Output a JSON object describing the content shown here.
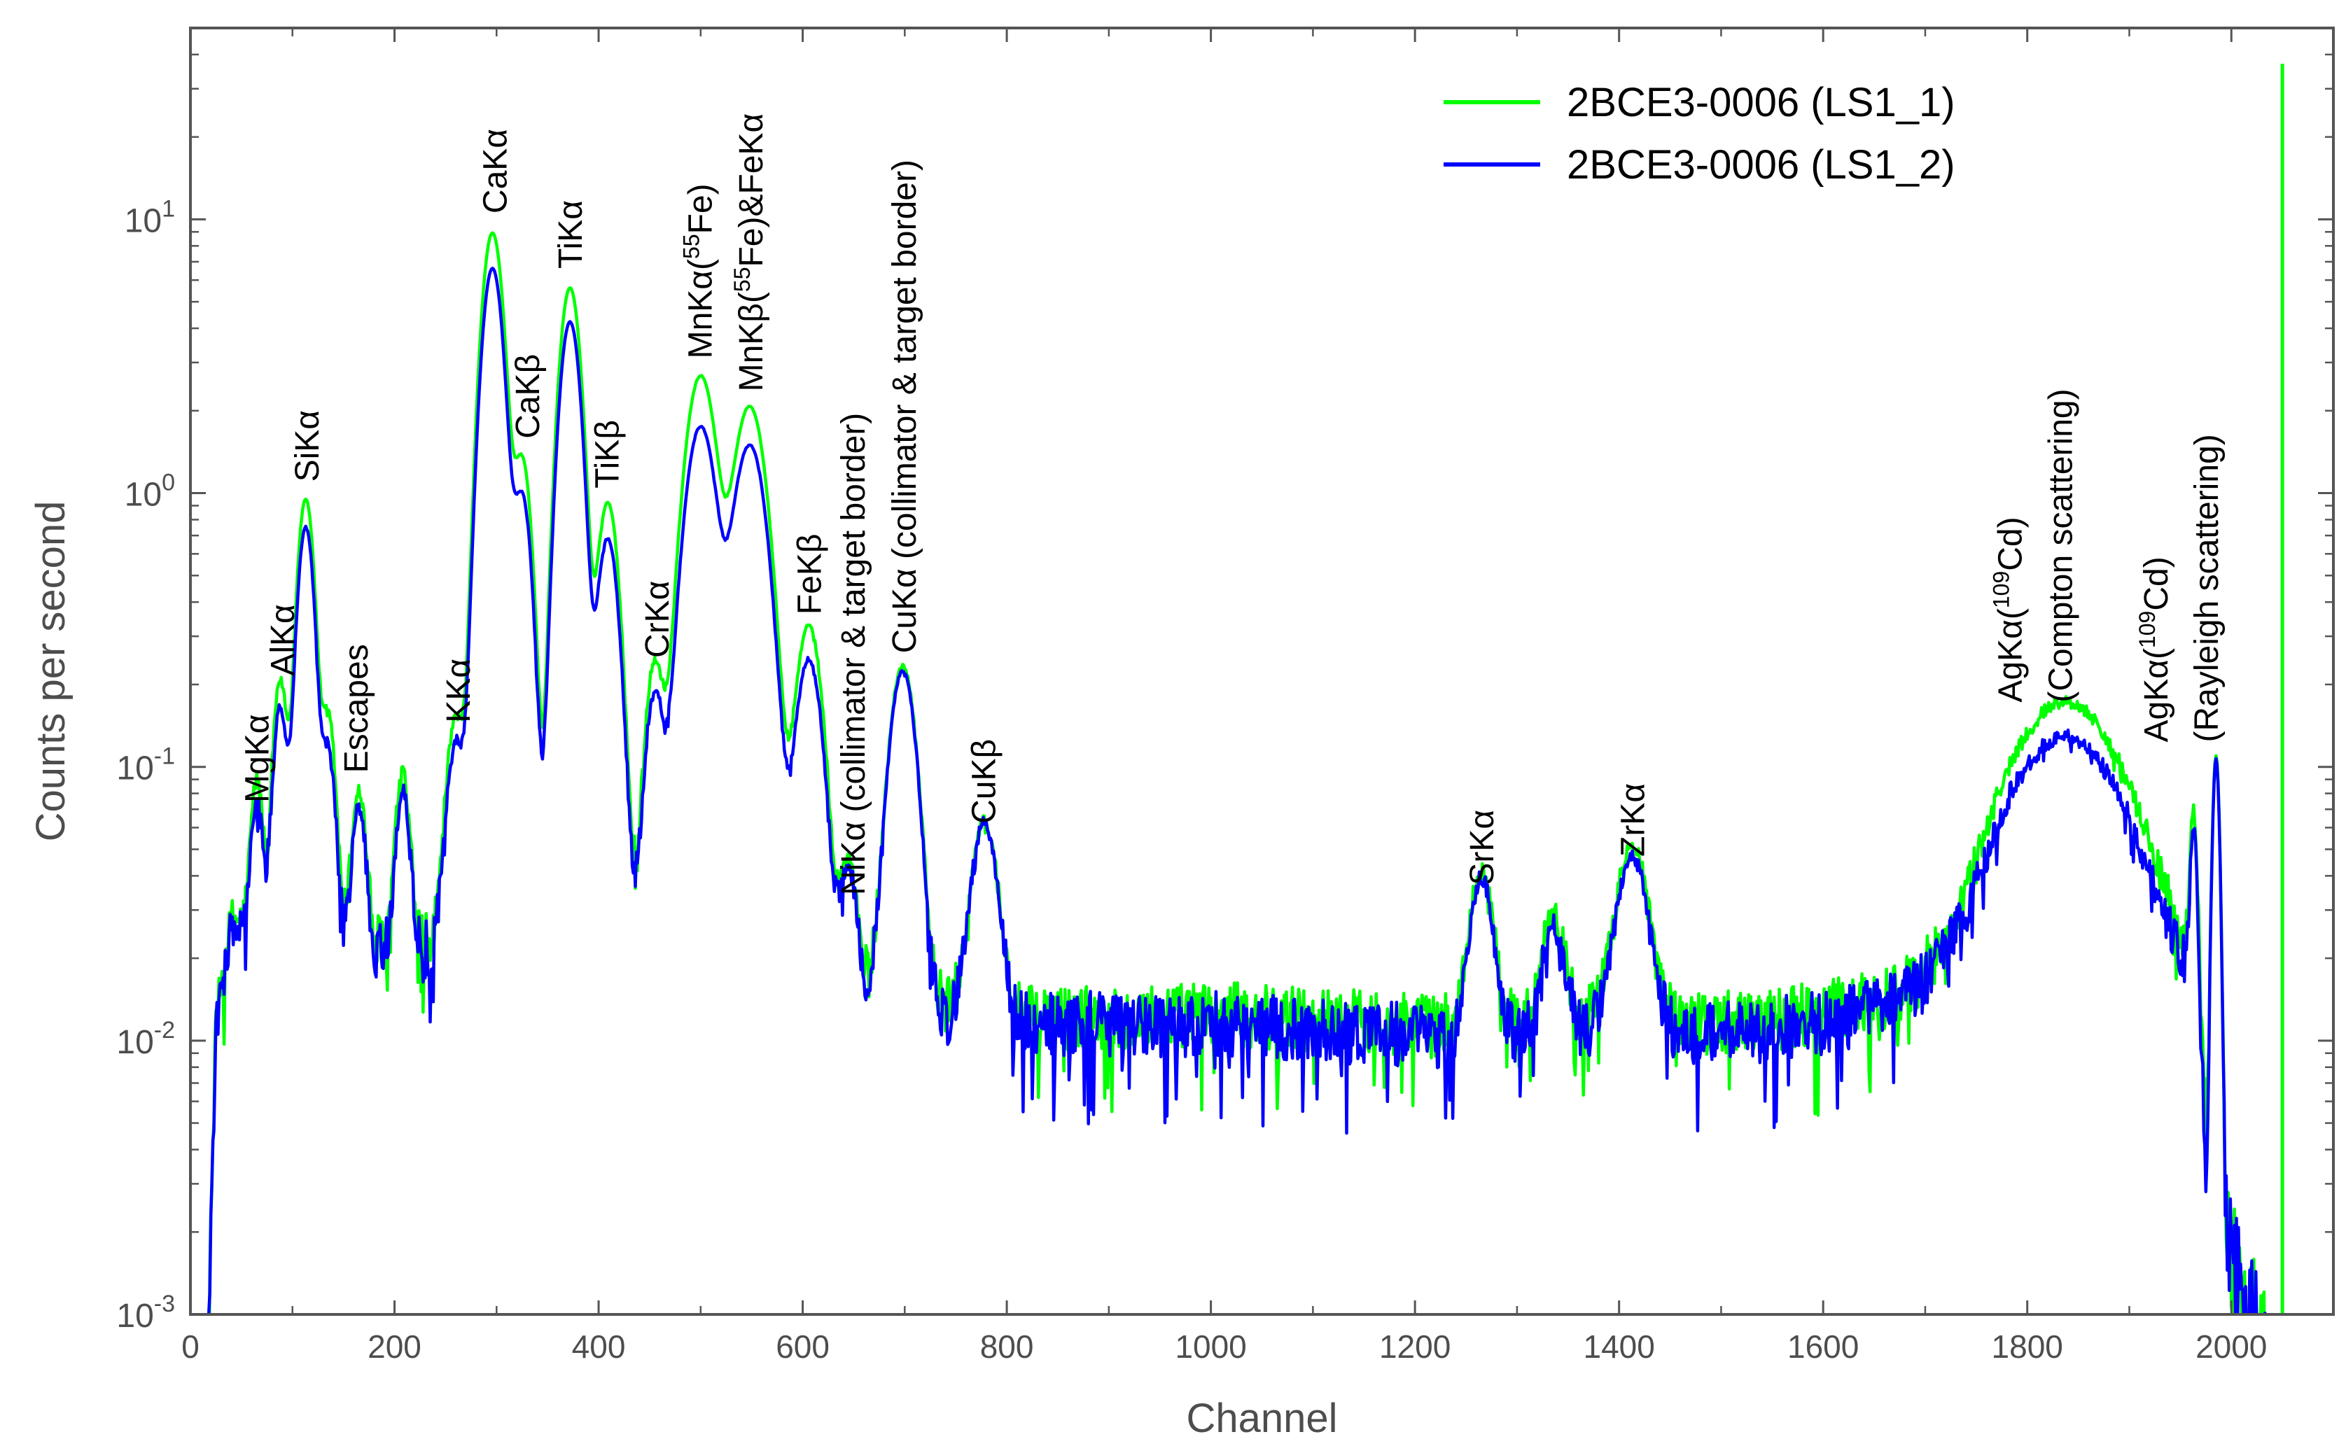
{
  "chart_data": {
    "type": "line",
    "xlabel": "Channel",
    "ylabel": "Counts per second",
    "xlim": [
      0,
      2100
    ],
    "ylim": [
      0.001,
      50
    ],
    "yscale": "log",
    "grid": false,
    "legend_position": "top-right",
    "x_ticks": [
      0,
      200,
      400,
      600,
      800,
      1000,
      1200,
      1400,
      1600,
      1800,
      2000
    ],
    "y_ticks": [
      {
        "value": 0.001,
        "base": "10",
        "exp": "-3"
      },
      {
        "value": 0.01,
        "base": "10",
        "exp": "-2"
      },
      {
        "value": 0.1,
        "base": "10",
        "exp": "-1"
      },
      {
        "value": 1,
        "base": "10",
        "exp": "0"
      },
      {
        "value": 10,
        "base": "10",
        "exp": "1"
      }
    ],
    "series": [
      {
        "name": "2BCE3-0006 (LS1_1)",
        "color": "#00ff00",
        "baseline": [
          [
            18,
            0.001
          ],
          [
            25,
            0.012
          ],
          [
            40,
            0.028
          ],
          [
            150,
            0.022
          ],
          [
            250,
            0.022
          ],
          [
            320,
            0.025
          ],
          [
            400,
            0.025
          ],
          [
            500,
            0.03
          ],
          [
            580,
            0.018
          ],
          [
            620,
            0.018
          ],
          [
            680,
            0.014
          ],
          [
            760,
            0.013
          ],
          [
            820,
            0.012
          ],
          [
            1000,
            0.0125
          ],
          [
            1200,
            0.0115
          ],
          [
            1260,
            0.011
          ],
          [
            1400,
            0.013
          ],
          [
            1500,
            0.0115
          ],
          [
            1600,
            0.0125
          ],
          [
            1680,
            0.015
          ],
          [
            1740,
            0.022
          ],
          [
            1780,
            0.035
          ],
          [
            1900,
            0.03
          ],
          [
            1950,
            0.02
          ],
          [
            1968,
            0.012
          ],
          [
            1975,
            0.0025
          ],
          [
            2040,
            0.0006
          ]
        ],
        "peaks": [
          {
            "ch": 65,
            "h": 0.063,
            "w": 5
          },
          {
            "ch": 88,
            "h": 0.18,
            "w": 6
          },
          {
            "ch": 113,
            "h": 0.93,
            "w": 7
          },
          {
            "ch": 135,
            "h": 0.13,
            "w": 6
          },
          {
            "ch": 165,
            "h": 0.06,
            "w": 6
          },
          {
            "ch": 208,
            "h": 0.072,
            "w": 6
          },
          {
            "ch": 260,
            "h": 0.125,
            "w": 8
          },
          {
            "ch": 296,
            "h": 8.9,
            "w": 9
          },
          {
            "ch": 325,
            "h": 1.3,
            "w": 8
          },
          {
            "ch": 372,
            "h": 5.6,
            "w": 9
          },
          {
            "ch": 409,
            "h": 0.9,
            "w": 9
          },
          {
            "ch": 455,
            "h": 0.21,
            "w": 8
          },
          {
            "ch": 500,
            "h": 2.65,
            "w": 13
          },
          {
            "ch": 548,
            "h": 2.05,
            "w": 14
          },
          {
            "ch": 606,
            "h": 0.31,
            "w": 11
          },
          {
            "ch": 645,
            "h": 0.03,
            "w": 7
          },
          {
            "ch": 698,
            "h": 0.22,
            "w": 11
          },
          {
            "ch": 778,
            "h": 0.05,
            "w": 11
          },
          {
            "ch": 1265,
            "h": 0.031,
            "w": 10
          },
          {
            "ch": 1335,
            "h": 0.017,
            "w": 10
          },
          {
            "ch": 1413,
            "h": 0.039,
            "w": 13
          },
          {
            "ch": 1838,
            "h": 0.14,
            "w": 45
          },
          {
            "ch": 1963,
            "h": 0.053,
            "w": 3
          },
          {
            "ch": 1985,
            "h": 0.108,
            "w": 3
          }
        ],
        "spikes": [
          {
            "ch": 2050,
            "value": 37
          }
        ]
      },
      {
        "name": "2BCE3-0006 (LS1_2)",
        "color": "#0000ff",
        "baseline": [
          [
            18,
            0.001
          ],
          [
            25,
            0.011
          ],
          [
            40,
            0.026
          ],
          [
            150,
            0.02
          ],
          [
            250,
            0.021
          ],
          [
            320,
            0.023
          ],
          [
            400,
            0.023
          ],
          [
            500,
            0.028
          ],
          [
            580,
            0.017
          ],
          [
            620,
            0.017
          ],
          [
            680,
            0.013
          ],
          [
            760,
            0.012
          ],
          [
            820,
            0.0115
          ],
          [
            1000,
            0.0115
          ],
          [
            1200,
            0.0105
          ],
          [
            1260,
            0.01
          ],
          [
            1400,
            0.0115
          ],
          [
            1500,
            0.0105
          ],
          [
            1600,
            0.0115
          ],
          [
            1680,
            0.014
          ],
          [
            1740,
            0.02
          ],
          [
            1780,
            0.03
          ],
          [
            1900,
            0.025
          ],
          [
            1950,
            0.017
          ],
          [
            1968,
            0.01
          ],
          [
            1975,
            0.0022
          ],
          [
            2040,
            0.0006
          ]
        ],
        "peaks": [
          {
            "ch": 65,
            "h": 0.048,
            "w": 5
          },
          {
            "ch": 88,
            "h": 0.14,
            "w": 6
          },
          {
            "ch": 113,
            "h": 0.73,
            "w": 7
          },
          {
            "ch": 135,
            "h": 0.095,
            "w": 6
          },
          {
            "ch": 165,
            "h": 0.05,
            "w": 6
          },
          {
            "ch": 208,
            "h": 0.06,
            "w": 6
          },
          {
            "ch": 260,
            "h": 0.1,
            "w": 8
          },
          {
            "ch": 296,
            "h": 6.6,
            "w": 9
          },
          {
            "ch": 325,
            "h": 0.95,
            "w": 8
          },
          {
            "ch": 372,
            "h": 4.2,
            "w": 9
          },
          {
            "ch": 409,
            "h": 0.66,
            "w": 9
          },
          {
            "ch": 455,
            "h": 0.16,
            "w": 8
          },
          {
            "ch": 500,
            "h": 1.72,
            "w": 13
          },
          {
            "ch": 548,
            "h": 1.48,
            "w": 14
          },
          {
            "ch": 606,
            "h": 0.23,
            "w": 11
          },
          {
            "ch": 645,
            "h": 0.028,
            "w": 7
          },
          {
            "ch": 698,
            "h": 0.21,
            "w": 11
          },
          {
            "ch": 778,
            "h": 0.05,
            "w": 11
          },
          {
            "ch": 1265,
            "h": 0.029,
            "w": 10
          },
          {
            "ch": 1335,
            "h": 0.015,
            "w": 10
          },
          {
            "ch": 1413,
            "h": 0.035,
            "w": 13
          },
          {
            "ch": 1838,
            "h": 0.101,
            "w": 45
          },
          {
            "ch": 1963,
            "h": 0.046,
            "w": 3
          },
          {
            "ch": 1985,
            "h": 0.105,
            "w": 3
          }
        ],
        "spikes": []
      }
    ],
    "annotations": [
      {
        "lines": [
          "MgKα"
        ],
        "ch": 65,
        "value": 0.074
      },
      {
        "lines": [
          "AlKα"
        ],
        "ch": 90,
        "value": 0.215
      },
      {
        "lines": [
          "SiKα"
        ],
        "ch": 114,
        "value": 1.1
      },
      {
        "lines": [
          "Escapes"
        ],
        "ch": 162,
        "value": 0.095
      },
      {
        "lines": [
          "KKα"
        ],
        "ch": 262,
        "value": 0.145
      },
      {
        "lines": [
          "CaKα"
        ],
        "ch": 298,
        "value": 10.5
      },
      {
        "lines": [
          "CaKβ"
        ],
        "ch": 330,
        "value": 1.58
      },
      {
        "lines": [
          "TiKα"
        ],
        "ch": 372,
        "value": 6.6
      },
      {
        "lines": [
          "TiKβ"
        ],
        "ch": 408,
        "value": 1.04
      },
      {
        "lines": [
          "CrKα"
        ],
        "ch": 457,
        "value": 0.25
      },
      {
        "lines": [
          "MnKα(55Fe)"
        ],
        "ch": 499,
        "value": 3.1
      },
      {
        "lines": [
          "MnKβ(55Fe)&FeKα"
        ],
        "ch": 549,
        "value": 2.35
      },
      {
        "lines": [
          "FeKβ"
        ],
        "ch": 606,
        "value": 0.36
      },
      {
        "lines": [
          "NiKα (collimator & target border)"
        ],
        "ch": 649,
        "value": 0.034
      },
      {
        "lines": [
          "CuKα (collimator & target border)"
        ],
        "ch": 699,
        "value": 0.26
      },
      {
        "lines": [
          "CuKβ"
        ],
        "ch": 777,
        "value": 0.062
      },
      {
        "lines": [
          "SrKα"
        ],
        "ch": 1265,
        "value": 0.037
      },
      {
        "lines": [
          "ZrKα"
        ],
        "ch": 1413,
        "value": 0.047
      },
      {
        "lines": [
          "AgKα(109Cd)",
          "(Compton scattering)"
        ],
        "ch": 1832,
        "value": 0.172
      },
      {
        "lines": [
          "AgKα(109Cd)",
          "(Rayleigh scattering)"
        ],
        "ch": 1975,
        "value": 0.123
      }
    ]
  }
}
